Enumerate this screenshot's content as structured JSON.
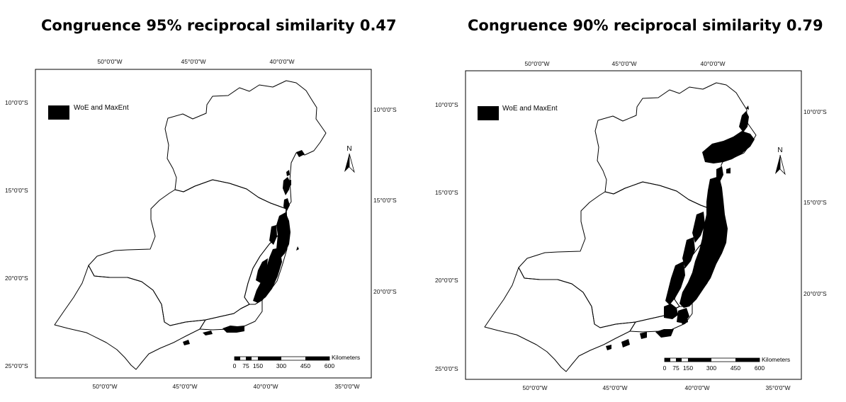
{
  "panels": [
    {
      "title": "Congruence 95% reciprocal similarity 0.47",
      "legend_label": "WoE and MaxEnt",
      "north_label": "N",
      "top_lon_labels": [
        "50°0'0\"W",
        "45°0'0\"W",
        "40°0'0\"W"
      ],
      "bottom_lon_labels": [
        "50°0'0\"W",
        "45°0'0\"W",
        "40°0'0\"W",
        "35°0'0\"W"
      ],
      "left_lat_labels": [
        "10°0'0\"S",
        "15°0'0\"S",
        "20°0'0\"S",
        "25°0'0\"S"
      ],
      "right_lat_labels": [
        "10°0'0\"S",
        "15°0'0\"S",
        "20°0'0\"S"
      ],
      "scale_unit": "Kilometers",
      "scale_ticks": [
        "0",
        "75",
        "150",
        "300",
        "450",
        "600"
      ]
    },
    {
      "title": "Congruence 90% reciprocal similarity 0.79",
      "legend_label": "WoE and MaxEnt",
      "north_label": "N",
      "top_lon_labels": [
        "50°0'0\"W",
        "45°0'0\"W",
        "40°0'0\"W"
      ],
      "bottom_lon_labels": [
        "50°0'0\"W",
        "45°0'0\"W",
        "40°0'0\"W",
        "35°0'0\"W"
      ],
      "left_lat_labels": [
        "10°0'0\"S",
        "15°0'0\"S",
        "20°0'0\"S",
        "25°0'0\"S"
      ],
      "right_lat_labels": [
        "10°0'0\"S",
        "15°0'0\"S",
        "20°0'0\"S"
      ],
      "scale_unit": "Kilometers",
      "scale_ticks": [
        "0",
        "75",
        "150",
        "300",
        "450",
        "600"
      ]
    }
  ],
  "colors": {
    "congruence_fill": "#000000",
    "outline": "#000000",
    "background": "#ffffff"
  }
}
